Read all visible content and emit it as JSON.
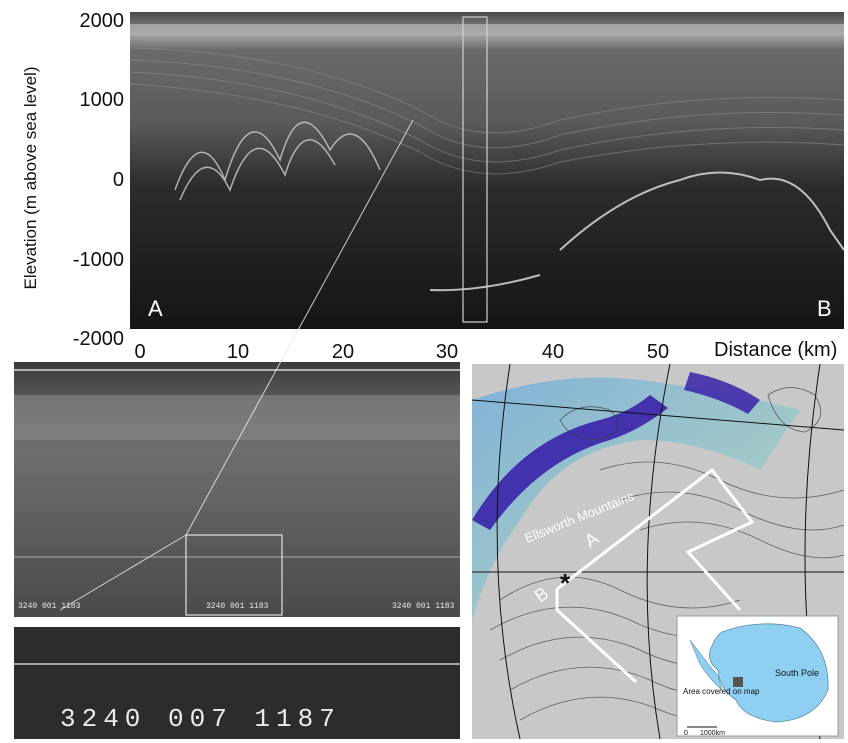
{
  "radargram": {
    "y_axis_label": "Elevation (m above sea level)",
    "y_ticks": [
      "2000",
      "1000",
      "0",
      "-1000",
      "-2000"
    ],
    "y_range": [
      -2000,
      2000
    ],
    "x_ticks": [
      "0",
      "10",
      "20",
      "30",
      "40",
      "50"
    ],
    "x_axis_label": "Distance (km)",
    "x_range": [
      0,
      60
    ],
    "corner_labels": {
      "start": "A",
      "end": "B"
    }
  },
  "film": {
    "frame_codes": [
      "3240 001 1183",
      "3240 001 1183",
      "3240 001 1183"
    ],
    "zoom_code": "3240 007 1187"
  },
  "map": {
    "region_label": "Ellsworth Mountains",
    "line_labels": {
      "a": "A",
      "b": "B"
    },
    "site_marker": "*",
    "inset": {
      "pole_label": "South Pole",
      "area_note": "Area covered on map",
      "scale_start": "0",
      "scale_end": "1000km"
    }
  },
  "colors": {
    "radar_bg": "#1c1c1c",
    "map_bg": "#c8c8c8",
    "ice_stream_dark": "#3a22a8",
    "ice_stream_light": "#5fa8e0",
    "inset_water": "#ffffff",
    "inset_land": "#8fd0f2"
  }
}
